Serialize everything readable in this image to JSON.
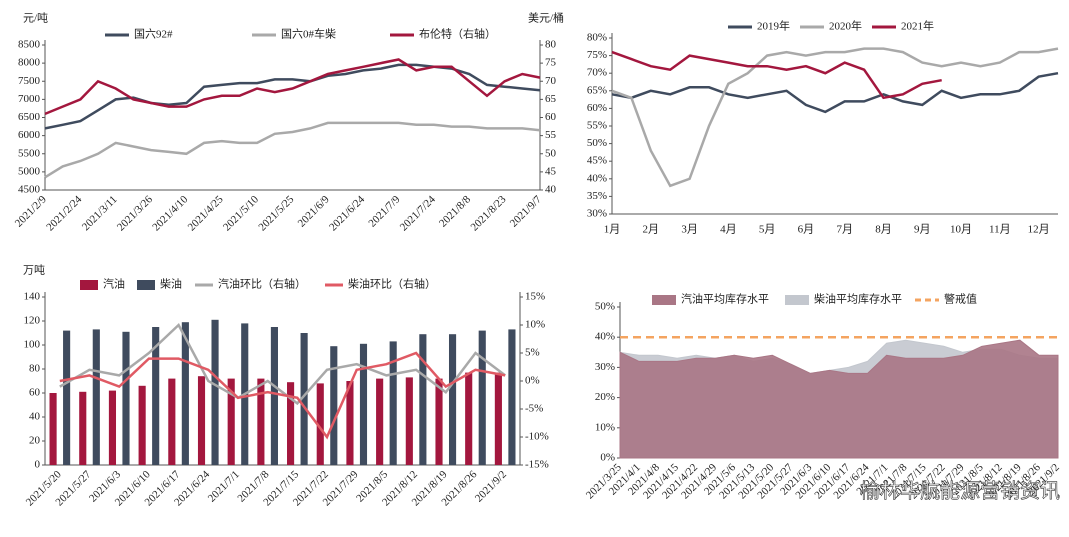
{
  "chart_data": [
    {
      "type": "line",
      "y_label": "元/吨",
      "y2_label": "美元/桶",
      "categories": [
        "2021/2/9",
        null,
        "2021/2/24",
        null,
        "2021/3/11",
        null,
        "2021/3/26",
        null,
        "2021/4/10",
        null,
        "2021/4/25",
        null,
        "2021/5/10",
        null,
        "2021/5/25",
        null,
        "2021/6/9",
        null,
        "2021/6/24",
        null,
        "2021/7/9",
        null,
        "2021/7/24",
        null,
        "2021/8/8",
        null,
        "2021/8/23",
        null,
        "2021/9/7"
      ],
      "ylim": [
        4500,
        8500
      ],
      "yticks": [
        4500,
        5000,
        5500,
        6000,
        6500,
        7000,
        7500,
        8000,
        8500
      ],
      "y2lim": [
        40,
        80
      ],
      "y2ticks": [
        40,
        45,
        50,
        55,
        60,
        65,
        70,
        75,
        80
      ],
      "series": [
        {
          "name": "国六92#",
          "color": "#3f4b5e",
          "values": [
            6200,
            6300,
            6400,
            6700,
            7000,
            7050,
            6900,
            6850,
            6900,
            7350,
            7400,
            7450,
            7450,
            7550,
            7550,
            7500,
            7650,
            7700,
            7800,
            7850,
            7950,
            7950,
            7900,
            7850,
            7700,
            7400,
            7350,
            7300,
            7250
          ]
        },
        {
          "name": "国六0#车柴",
          "color": "#a9a9a9",
          "values": [
            4850,
            5150,
            5300,
            5500,
            5800,
            5700,
            5600,
            5550,
            5500,
            5800,
            5850,
            5800,
            5800,
            6050,
            6100,
            6200,
            6350,
            6350,
            6350,
            6350,
            6350,
            6300,
            6300,
            6250,
            6250,
            6200,
            6200,
            6200,
            6150
          ]
        },
        {
          "name": "布伦特（右轴）",
          "color": "#a3173e",
          "axis": "y2",
          "values": [
            61,
            63,
            65,
            70,
            68,
            65,
            64,
            63,
            63,
            65,
            66,
            66,
            68,
            67,
            68,
            70,
            72,
            73,
            74,
            75,
            76,
            73,
            74,
            74,
            70,
            66,
            70,
            72,
            71
          ]
        }
      ]
    },
    {
      "type": "line",
      "categories": [
        "1月",
        null,
        "2月",
        null,
        "3月",
        null,
        "4月",
        null,
        "5月",
        null,
        "6月",
        null,
        "7月",
        null,
        "8月",
        null,
        "9月",
        null,
        "10月",
        null,
        "11月",
        null,
        "12月",
        null
      ],
      "ylim": [
        30,
        80
      ],
      "yticks": [
        {
          "value": 30,
          "label": "30%"
        },
        {
          "value": 35,
          "label": "35%"
        },
        {
          "value": 40,
          "label": "40%"
        },
        {
          "value": 45,
          "label": "45%"
        },
        {
          "value": 50,
          "label": "50%"
        },
        {
          "value": 55,
          "label": "55%"
        },
        {
          "value": 60,
          "label": "60%"
        },
        {
          "value": 65,
          "label": "65%"
        },
        {
          "value": 70,
          "label": "70%"
        },
        {
          "value": 75,
          "label": "75%"
        },
        {
          "value": 80,
          "label": "80%"
        }
      ],
      "series": [
        {
          "name": "2019年",
          "color": "#3f4b5e",
          "values": [
            64,
            63,
            65,
            64,
            66,
            66,
            64,
            63,
            64,
            65,
            61,
            59,
            62,
            62,
            64,
            62,
            61,
            65,
            63,
            64,
            64,
            65,
            69,
            70
          ]
        },
        {
          "name": "2020年",
          "color": "#a9a9a9",
          "values": [
            65,
            63,
            48,
            38,
            40,
            55,
            67,
            70,
            75,
            76,
            75,
            76,
            76,
            77,
            77,
            76,
            73,
            72,
            73,
            72,
            73,
            76,
            76,
            77
          ]
        },
        {
          "name": "2021年",
          "color": "#a3173e",
          "values": [
            76,
            74,
            72,
            71,
            75,
            74,
            73,
            72,
            72,
            71,
            72,
            70,
            73,
            71,
            63,
            64,
            67,
            68,
            null,
            null,
            null,
            null,
            null,
            null
          ]
        }
      ]
    },
    {
      "type": "bar",
      "y_label": "万吨",
      "categories": [
        "2021/5/20",
        "2021/5/27",
        "2021/6/3",
        "2021/6/10",
        "2021/6/17",
        "2021/6/24",
        "2021/7/1",
        "2021/7/8",
        "2021/7/15",
        "2021/7/22",
        "2021/7/29",
        "2021/8/5",
        "2021/8/12",
        "2021/8/19",
        "2021/8/26",
        "2021/9/2"
      ],
      "ylim": [
        0,
        140
      ],
      "yticks": [
        0,
        20,
        40,
        60,
        80,
        100,
        120,
        140
      ],
      "y2lim": [
        -15,
        15
      ],
      "y2ticks": [
        {
          "value": -15,
          "label": "-15%"
        },
        {
          "value": -10,
          "label": "-10%"
        },
        {
          "value": -5,
          "label": "-5%"
        },
        {
          "value": 0,
          "label": "0%"
        },
        {
          "value": 5,
          "label": "5%"
        },
        {
          "value": 10,
          "label": "10%"
        },
        {
          "value": 15,
          "label": "15%"
        }
      ],
      "series": [
        {
          "name": "汽油",
          "color": "#a3173e",
          "values": [
            60,
            61,
            62,
            66,
            72,
            74,
            72,
            72,
            69,
            68,
            70,
            72,
            73,
            72,
            77,
            77
          ]
        },
        {
          "name": "柴油",
          "color": "#3f4b5e",
          "values": [
            112,
            113,
            111,
            115,
            119,
            121,
            118,
            115,
            110,
            99,
            101,
            103,
            109,
            109,
            112,
            113
          ]
        },
        {
          "name": "汽油环比（右轴）",
          "color": "#a9a9a9",
          "axis": "y2",
          "values": [
            -1,
            2,
            1,
            5,
            10,
            0,
            -3,
            0,
            -4,
            2,
            3,
            1,
            2,
            -2,
            5,
            1
          ]
        },
        {
          "name": "柴油环比（右轴）",
          "color": "#e05a64",
          "axis": "y2",
          "values": [
            0,
            1,
            -1,
            4,
            4,
            2,
            -3,
            -2,
            -3,
            -10,
            2,
            3,
            5,
            -1,
            2,
            1
          ]
        }
      ]
    },
    {
      "type": "area",
      "categories": [
        "2021/3/25",
        "2021/4/1",
        "2021/4/8",
        "2021/4/15",
        "2021/4/22",
        "2021/4/29",
        "2021/5/6",
        "2021/5/13",
        "2021/5/20",
        "2021/5/27",
        "2021/6/3",
        "2021/6/10",
        "2021/6/17",
        "2021/6/24",
        "2021/7/1",
        "2021/7/8",
        "2021/7/15",
        "2021/7/22",
        "2021/7/29",
        "2021/8/5",
        "2021/8/12",
        "2021/8/19",
        "2021/8/26",
        "2021/9/2"
      ],
      "ylim": [
        0,
        50
      ],
      "yticks": [
        {
          "value": 0,
          "label": "0%"
        },
        {
          "value": 10,
          "label": "10%"
        },
        {
          "value": 20,
          "label": "20%"
        },
        {
          "value": 30,
          "label": "30%"
        },
        {
          "value": 40,
          "label": "40%"
        },
        {
          "value": 50,
          "label": "50%"
        }
      ],
      "series": [
        {
          "name": "汽油平均库存水平",
          "color": "#a97685",
          "values": [
            35,
            32,
            32,
            32,
            33,
            33,
            34,
            33,
            34,
            31,
            28,
            29,
            28,
            28,
            34,
            33,
            33,
            33,
            34,
            37,
            38,
            39,
            34,
            34
          ]
        },
        {
          "name": "柴油平均库存水平",
          "color": "#c3c7ce",
          "values": [
            35,
            34,
            34,
            33,
            34,
            33,
            34,
            32,
            33,
            31,
            28,
            29,
            30,
            32,
            38,
            39,
            38,
            37,
            35,
            36,
            36,
            34,
            33,
            33
          ]
        },
        {
          "name": "警戒值",
          "color": "#f4a460",
          "dashed": true,
          "value": 40
        }
      ]
    }
  ],
  "watermark": "榆林华航能源营销资讯"
}
